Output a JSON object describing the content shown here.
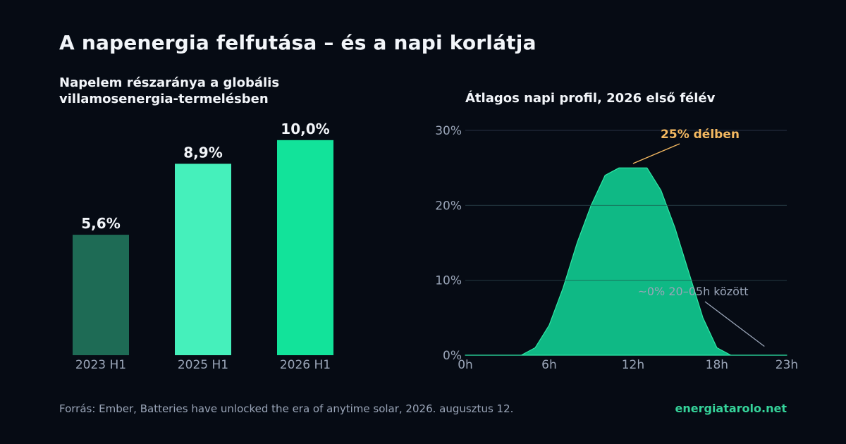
{
  "title": "A napenergia felfutása – és a napi korlátja",
  "footer": {
    "source": "Forrás: Ember, Batteries have unlocked the era of anytime solar, 2026. augusztus 12.",
    "brand": "energiatarolo.net"
  },
  "colors": {
    "background": "#060b14",
    "bar_2023": "#1e6b55",
    "bar_2025": "#45f0bb",
    "bar_2026": "#12e39a",
    "area_fill": "#0fb985",
    "area_line": "#2ee8a6",
    "grid": "#283244",
    "peak_annotation": "#f4b961",
    "night_annotation": "#9aa5b8"
  },
  "chart_data": [
    {
      "type": "bar",
      "title": "Napelem részaránya a globális villamosenergia-termelésben",
      "categories": [
        "2023 H1",
        "2025 H1",
        "2026 H1"
      ],
      "values": [
        5.6,
        8.9,
        10.0
      ],
      "value_labels": [
        "5,6%",
        "8,9%",
        "10,0%"
      ],
      "ylim": [
        0,
        11.6
      ],
      "grid": false,
      "legend": "none"
    },
    {
      "type": "area",
      "title": "Átlagos napi profil, 2026 első félév",
      "x": [
        0,
        1,
        2,
        3,
        4,
        5,
        6,
        7,
        8,
        9,
        10,
        11,
        12,
        13,
        14,
        15,
        16,
        17,
        18,
        19,
        20,
        21,
        22,
        23
      ],
      "values": [
        0,
        0,
        0,
        0,
        0,
        1,
        4,
        9,
        15,
        20,
        24,
        25,
        25,
        25,
        22,
        17,
        11,
        5,
        1,
        0,
        0,
        0,
        0,
        0
      ],
      "xlim": [
        0,
        23
      ],
      "ylim": [
        0,
        30
      ],
      "x_ticks": [
        0,
        6,
        12,
        18,
        23
      ],
      "x_tick_labels": [
        "0h",
        "6h",
        "12h",
        "18h",
        "23h"
      ],
      "y_ticks": [
        0,
        10,
        20,
        30
      ],
      "y_tick_labels": [
        "0%",
        "10%",
        "20%",
        "30%"
      ],
      "grid": true,
      "legend": "none",
      "annotations": [
        {
          "text": "25% délben",
          "target_x": 12,
          "target_y": 25.2
        },
        {
          "text": "~0% 20–05h között",
          "target_x": 21.4,
          "target_y": 0.8
        }
      ]
    }
  ]
}
